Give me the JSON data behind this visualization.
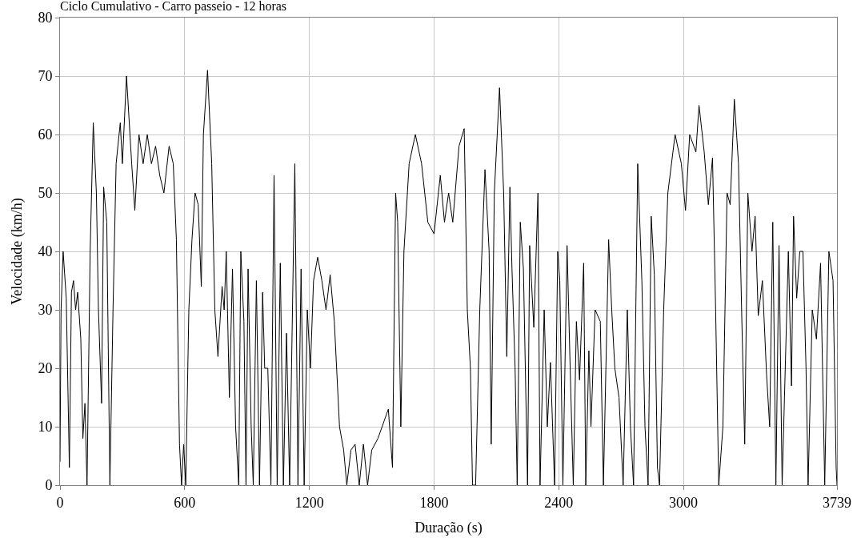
{
  "chart_data": {
    "type": "line",
    "title": "Ciclo Cumulativo - Carro passeio - 12 horas",
    "xlabel": "Duração (s)",
    "ylabel": "Velocidade (km/h)",
    "xlim": [
      0,
      3739
    ],
    "xticks": [
      0,
      600,
      1200,
      1800,
      2400,
      3000,
      3739
    ],
    "ylim": [
      0,
      80
    ],
    "yticks": [
      0,
      10,
      20,
      30,
      40,
      50,
      60,
      70,
      80
    ],
    "grid": true,
    "legend": false,
    "marker": "none",
    "line_style": "solid",
    "series": [
      {
        "color": "#000000",
        "x": [
          0,
          5,
          15,
          30,
          45,
          55,
          65,
          75,
          85,
          100,
          110,
          120,
          130,
          145,
          160,
          175,
          185,
          200,
          210,
          225,
          240,
          255,
          270,
          290,
          300,
          320,
          345,
          360,
          380,
          400,
          420,
          440,
          460,
          480,
          500,
          525,
          545,
          560,
          575,
          585,
          595,
          605,
          620,
          635,
          650,
          665,
          680,
          690,
          710,
          730,
          745,
          760,
          780,
          790,
          800,
          815,
          830,
          845,
          860,
          870,
          885,
          895,
          905,
          920,
          930,
          945,
          960,
          975,
          985,
          1000,
          1015,
          1030,
          1045,
          1060,
          1075,
          1090,
          1105,
          1130,
          1145,
          1160,
          1175,
          1190,
          1205,
          1220,
          1240,
          1260,
          1280,
          1300,
          1320,
          1345,
          1365,
          1380,
          1400,
          1420,
          1440,
          1460,
          1480,
          1500,
          1530,
          1560,
          1580,
          1600,
          1615,
          1625,
          1640,
          1655,
          1680,
          1710,
          1740,
          1770,
          1800,
          1830,
          1850,
          1870,
          1890,
          1920,
          1945,
          1960,
          1975,
          1985,
          2000,
          2020,
          2045,
          2065,
          2075,
          2090,
          2115,
          2135,
          2150,
          2165,
          2175,
          2190,
          2200,
          2215,
          2230,
          2250,
          2260,
          2280,
          2300,
          2310,
          2330,
          2345,
          2360,
          2380,
          2395,
          2405,
          2420,
          2440,
          2455,
          2470,
          2485,
          2500,
          2520,
          2530,
          2545,
          2555,
          2575,
          2600,
          2615,
          2640,
          2655,
          2670,
          2690,
          2710,
          2730,
          2745,
          2760,
          2780,
          2800,
          2815,
          2830,
          2845,
          2860,
          2875,
          2885,
          2905,
          2925,
          2960,
          2990,
          3010,
          3030,
          3060,
          3075,
          3100,
          3120,
          3140,
          3155,
          3170,
          3190,
          3210,
          3225,
          3245,
          3265,
          3280,
          3295,
          3310,
          3330,
          3345,
          3360,
          3380,
          3400,
          3415,
          3430,
          3445,
          3460,
          3475,
          3490,
          3505,
          3520,
          3530,
          3545,
          3560,
          3575,
          3590,
          3600,
          3620,
          3640,
          3660,
          3680,
          3700,
          3720,
          3735,
          3739
        ],
        "values": [
          4,
          30,
          40,
          32,
          3,
          33,
          35,
          30,
          33,
          25,
          8,
          14,
          0,
          40,
          62,
          50,
          30,
          14,
          51,
          45,
          0,
          30,
          55,
          62,
          55,
          70,
          55,
          47,
          60,
          55,
          60,
          55,
          58,
          53,
          50,
          58,
          55,
          42,
          7,
          0,
          7,
          0,
          30,
          42,
          50,
          48,
          34,
          60,
          71,
          55,
          30,
          22,
          34,
          30,
          40,
          15,
          37,
          10,
          0,
          40,
          28,
          0,
          37,
          10,
          0,
          35,
          0,
          33,
          20,
          20,
          0,
          53,
          0,
          38,
          0,
          26,
          0,
          55,
          0,
          37,
          0,
          30,
          20,
          35,
          39,
          35,
          30,
          36,
          28,
          10,
          6,
          0,
          6,
          7,
          0,
          7,
          0,
          6,
          8,
          11,
          13,
          3,
          50,
          45,
          10,
          40,
          55,
          60,
          55,
          45,
          43,
          53,
          45,
          50,
          45,
          58,
          61,
          30,
          20,
          0,
          0,
          30,
          54,
          40,
          7,
          50,
          68,
          50,
          22,
          51,
          37,
          20,
          0,
          45,
          37,
          0,
          41,
          27,
          50,
          0,
          30,
          10,
          21,
          0,
          40,
          35,
          0,
          41,
          20,
          0,
          28,
          18,
          38,
          0,
          23,
          10,
          30,
          28,
          0,
          42,
          30,
          20,
          15,
          0,
          30,
          10,
          0,
          55,
          35,
          10,
          0,
          46,
          36,
          3,
          0,
          30,
          50,
          60,
          55,
          47,
          60,
          57,
          65,
          57,
          48,
          56,
          30,
          0,
          10,
          50,
          48,
          66,
          55,
          30,
          7,
          50,
          40,
          46,
          29,
          35,
          19,
          10,
          45,
          0,
          41,
          0,
          20,
          40,
          17,
          46,
          32,
          40,
          40,
          20,
          0,
          30,
          25,
          38,
          0,
          40,
          35,
          3,
          0
        ]
      }
    ]
  }
}
